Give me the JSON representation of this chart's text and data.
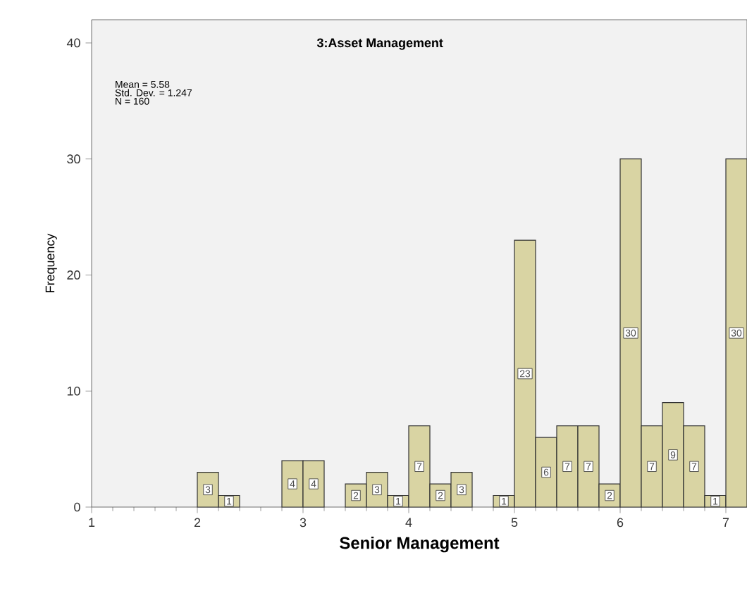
{
  "chart_data": {
    "type": "histogram",
    "title": "3:Asset Management",
    "xlabel": "Senior Management",
    "ylabel": "Frequency",
    "annotations": [
      "Mean = 5.58",
      "Std. Dev. = 1.247",
      "N = 160"
    ],
    "bins": [
      1.0,
      1.2,
      1.4,
      1.6,
      1.8,
      2.0,
      2.2,
      2.4,
      2.6,
      2.8,
      3.0,
      3.2,
      3.4,
      3.6,
      3.8,
      4.0,
      4.2,
      4.4,
      4.6,
      4.8,
      5.0,
      5.2,
      5.4,
      5.6,
      5.8,
      6.0,
      6.2,
      6.4,
      6.6,
      6.8,
      7.0,
      7.2
    ],
    "values": [
      0,
      0,
      0,
      0,
      0,
      3,
      1,
      0,
      0,
      4,
      4,
      0,
      2,
      3,
      1,
      7,
      2,
      3,
      0,
      1,
      23,
      6,
      7,
      7,
      2,
      30,
      7,
      9,
      7,
      1,
      30
    ],
    "value_labels": [
      null,
      null,
      null,
      null,
      null,
      "3",
      "1",
      null,
      null,
      "4",
      "4",
      null,
      "2",
      "3",
      "1",
      "7",
      "2",
      "3",
      null,
      "1",
      "23",
      "6",
      "7",
      "7",
      "2",
      "30",
      "7",
      "9",
      "7",
      "1",
      "30"
    ],
    "color": "#d9d4a3",
    "xlim": [
      1,
      7.2
    ],
    "xticks": [
      1,
      2,
      3,
      4,
      5,
      6,
      7
    ],
    "ylim": [
      0,
      42
    ],
    "yticks": [
      0,
      10,
      20,
      30,
      40
    ],
    "grid": false
  }
}
